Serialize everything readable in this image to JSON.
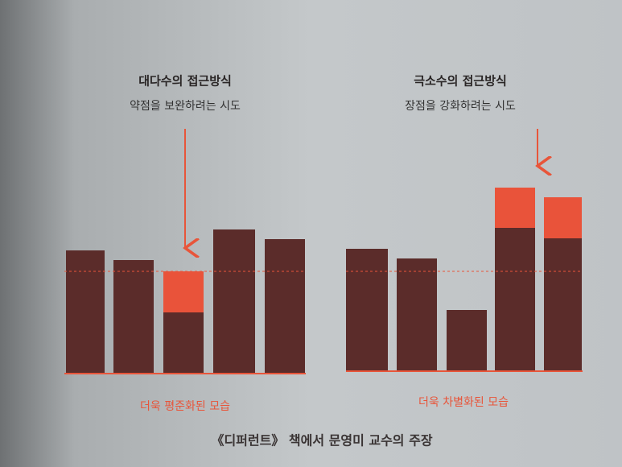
{
  "left": {
    "title": "대다수의 접근방식",
    "subtitle": "약점을 보완하려는 시도",
    "caption": "더욱 평준화된 모습"
  },
  "right": {
    "title": "극소수의 접근방식",
    "subtitle": "장점을 강화하려는 시도",
    "caption": "더욱 차별화된 모습"
  },
  "footer": "《디퍼런트》 책에서 문영미 교수의 주장"
}
